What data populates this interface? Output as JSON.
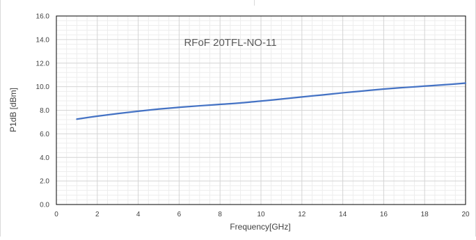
{
  "chart_data": {
    "type": "line",
    "title": "RFoF 20TFL-NO-11",
    "xlabel": "Frequency[GHz]",
    "ylabel": "P1dB [dBm]",
    "xlim": [
      0,
      20
    ],
    "ylim": [
      0,
      16
    ],
    "x_ticks": [
      0,
      2,
      4,
      6,
      8,
      10,
      12,
      14,
      16,
      18,
      20
    ],
    "y_ticks": [
      "0.0",
      "2.0",
      "4.0",
      "6.0",
      "8.0",
      "10.0",
      "12.0",
      "14.0",
      "16.0"
    ],
    "grid": {
      "major": true,
      "minor": true
    },
    "legend": "none",
    "series": [
      {
        "color": "#4472c4",
        "x": [
          1,
          2,
          3,
          4,
          5,
          6,
          7,
          8,
          9,
          10,
          11,
          12,
          13,
          14,
          15,
          16,
          17,
          18,
          19,
          20
        ],
        "values": [
          7.25,
          7.5,
          7.72,
          7.92,
          8.1,
          8.25,
          8.38,
          8.5,
          8.62,
          8.78,
          8.95,
          9.13,
          9.3,
          9.48,
          9.64,
          9.8,
          9.93,
          10.05,
          10.17,
          10.3
        ]
      }
    ]
  }
}
